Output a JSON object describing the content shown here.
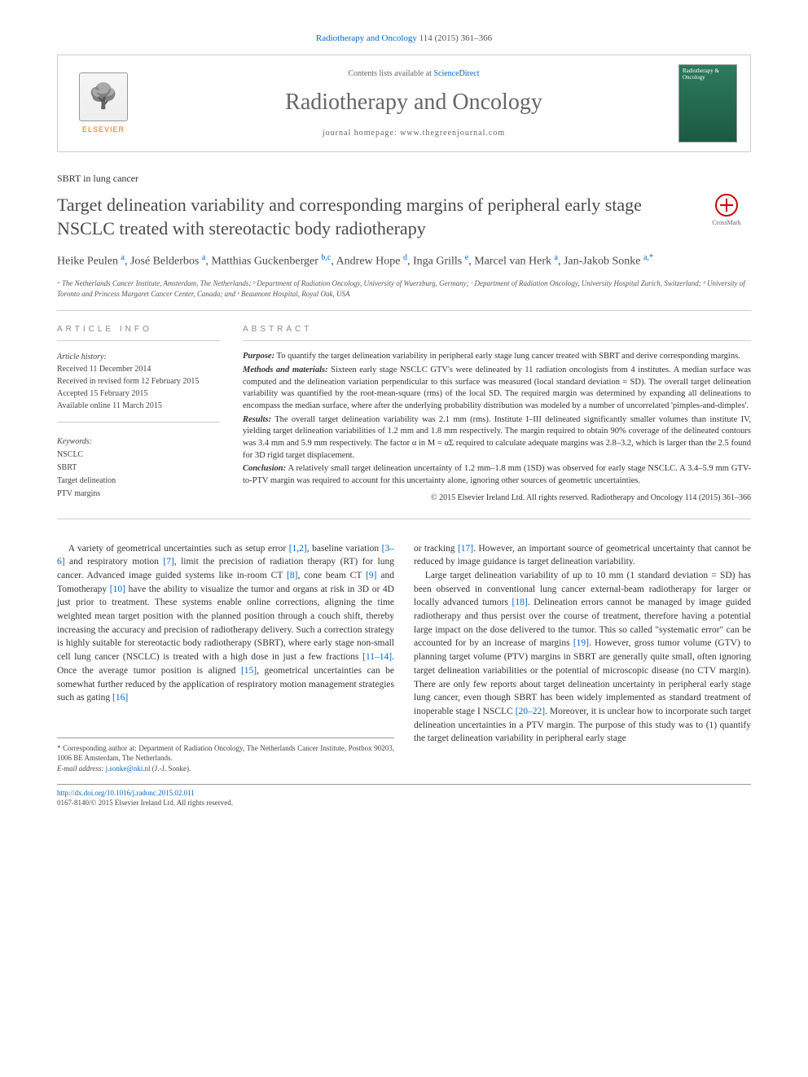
{
  "citation": {
    "journal_link": "Radiotherapy and Oncology",
    "text_after": " 114 (2015) 361–366"
  },
  "banner": {
    "elsevier": "ELSEVIER",
    "contents_prefix": "Contents lists available at ",
    "contents_link": "ScienceDirect",
    "journal_name": "Radiotherapy and Oncology",
    "homepage_label": "journal homepage: ",
    "homepage_url": "www.thegreenjournal.com",
    "cover_title": "Radiotherapy & Oncology"
  },
  "article": {
    "type": "SBRT in lung cancer",
    "title": "Target delineation variability and corresponding margins of peripheral early stage NSCLC treated with stereotactic body radiotherapy",
    "crossmark_label": "CrossMark"
  },
  "authors": [
    {
      "name": "Heike Peulen",
      "aff": "a"
    },
    {
      "name": "José Belderbos",
      "aff": "a"
    },
    {
      "name": "Matthias Guckenberger",
      "aff": "b,c"
    },
    {
      "name": "Andrew Hope",
      "aff": "d"
    },
    {
      "name": "Inga Grills",
      "aff": "e"
    },
    {
      "name": "Marcel van Herk",
      "aff": "a"
    },
    {
      "name": "Jan-Jakob Sonke",
      "aff": "a,",
      "corr": "*"
    }
  ],
  "affiliations_text": "ᵃ The Netherlands Cancer Institute, Amsterdam, The Netherlands; ᵇ Department of Radiation Oncology, University of Wuerzburg, Germany; ᶜ Department of Radiation Oncology, University Hospital Zurich, Switzerland; ᵈ University of Toronto and Princess Margaret Cancer Center, Canada; and ᵉ Beaumont Hospital, Royal Oak, USA",
  "info": {
    "header": "ARTICLE INFO",
    "history_label": "Article history:",
    "history": [
      "Received 11 December 2014",
      "Received in revised form 12 February 2015",
      "Accepted 15 February 2015",
      "Available online 11 March 2015"
    ],
    "keywords_label": "Keywords:",
    "keywords": [
      "NSCLC",
      "SBRT",
      "Target delineation",
      "PTV margins"
    ]
  },
  "abstract": {
    "header": "ABSTRACT",
    "purpose_label": "Purpose:",
    "purpose": " To quantify the target delineation variability in peripheral early stage lung cancer treated with SBRT and derive corresponding margins.",
    "methods_label": "Methods and materials:",
    "methods": " Sixteen early stage NSCLC GTV's were delineated by 11 radiation oncologists from 4 institutes. A median surface was computed and the delineation variation perpendicular to this surface was measured (local standard deviation = SD). The overall target delineation variability was quantified by the root-mean-square (rms) of the local SD. The required margin was determined by expanding all delineations to encompass the median surface, where after the underlying probability distribution was modeled by a number of uncorrelated 'pimples-and-dimples'.",
    "results_label": "Results:",
    "results": " The overall target delineation variability was 2.1 mm (rms). Institute I–III delineated significantly smaller volumes than institute IV, yielding target delineation variabilities of 1.2 mm and 1.8 mm respectively. The margin required to obtain 90% coverage of the delineated contours was 3.4 mm and 5.9 mm respectively. The factor α in M = αΣ required to calculate adequate margins was 2.8–3.2, which is larger than the 2.5 found for 3D rigid target displacement.",
    "conclusion_label": "Conclusion:",
    "conclusion": " A relatively small target delineation uncertainty of 1.2 mm–1.8 mm (1SD) was observed for early stage NSCLC. A 3.4–5.9 mm GTV-to-PTV margin was required to account for this uncertainty alone, ignoring other sources of geometric uncertainties.",
    "copyright": "© 2015 Elsevier Ireland Ltd. All rights reserved. Radiotherapy and Oncology 114 (2015) 361–366"
  },
  "body": {
    "col1_p1_a": "A variety of geometrical uncertainties such as setup error ",
    "col1_p1_ref1": "[1,2]",
    "col1_p1_b": ", baseline variation ",
    "col1_p1_ref2": "[3–6]",
    "col1_p1_c": " and respiratory motion ",
    "col1_p1_ref3": "[7]",
    "col1_p1_d": ", limit the precision of radiation therapy (RT) for lung cancer. Advanced image guided systems like in-room CT ",
    "col1_p1_ref4": "[8]",
    "col1_p1_e": ", cone beam CT ",
    "col1_p1_ref5": "[9]",
    "col1_p1_f": " and Tomotherapy ",
    "col1_p1_ref6": "[10]",
    "col1_p1_g": " have the ability to visualize the tumor and organs at risk in 3D or 4D just prior to treatment. These systems enable online corrections, aligning the time weighted mean target position with the planned position through a couch shift, thereby increasing the accuracy and precision of radiotherapy delivery. Such a correction strategy is highly suitable for stereotactic body radiotherapy (SBRT), where early stage non-small cell lung cancer (NSCLC) is treated with a high dose in just a few fractions ",
    "col1_p1_ref7": "[11–14]",
    "col1_p1_h": ". Once the average tumor position is aligned ",
    "col1_p1_ref8": "[15]",
    "col1_p1_i": ", geometrical uncertainties can be somewhat further reduced by the application of respiratory motion management strategies such as gating ",
    "col1_p1_ref9": "[16]",
    "col2_p1_a": "or tracking ",
    "col2_p1_ref1": "[17]",
    "col2_p1_b": ". However, an important source of geometrical uncertainty that cannot be reduced by image guidance is target delineation variability.",
    "col2_p2_a": "Large target delineation variability of up to 10 mm (1 standard deviation = SD) has been observed in conventional lung cancer external-beam radiotherapy for larger or locally advanced tumors ",
    "col2_p2_ref1": "[18]",
    "col2_p2_b": ". Delineation errors cannot be managed by image guided radiotherapy and thus persist over the course of treatment, therefore having a potential large impact on the dose delivered to the tumor. This so called \"systematic error\" can be accounted for by an increase of margins ",
    "col2_p2_ref2": "[19]",
    "col2_p2_c": ". However, gross tumor volume (GTV) to planning target volume (PTV) margins in SBRT are generally quite small, often ignoring target delineation variabilities or the potential of microscopic disease (no CTV margin). There are only few reports about target delineation uncertainty in peripheral early stage lung cancer, even though SBRT has been widely implemented as standard treatment of inoperable stage I NSCLC ",
    "col2_p2_ref3": "[20–22]",
    "col2_p2_d": ". Moreover, it is unclear how to incorporate such target delineation uncertainties in a PTV margin. The purpose of this study was to (1) quantify the target delineation variability in peripheral early stage"
  },
  "footer": {
    "corr_marker": "*",
    "corr_text": " Corresponding author at: Department of Radiation Oncology, The Netherlands Cancer Institute, Postbox 90203, 1006 BE Amsterdam, The Netherlands.",
    "email_label": "E-mail address: ",
    "email": "j.sonke@nki.nl",
    "email_suffix": " (J.-J. Sonke).",
    "doi_url": "http://dx.doi.org/10.1016/j.radonc.2015.02.011",
    "issn_line": "0167-8140/© 2015 Elsevier Ireland Ltd. All rights reserved."
  },
  "colors": {
    "link": "#0066cc",
    "elsevier_orange": "#ff6600",
    "crossmark_red": "#cc0000",
    "cover_green": "#2d7a5f",
    "text": "#333333",
    "border": "#cccccc"
  }
}
